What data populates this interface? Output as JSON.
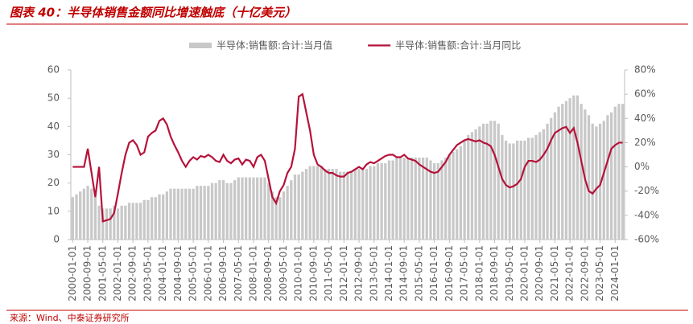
{
  "title": "图表 40：半导体销售金额同比增速触底（十亿美元）",
  "source": "来源：Wind、中泰证券研究所",
  "chart_data": {
    "type": "bar-line",
    "categories": [
      "2000-01-01",
      null,
      null,
      null,
      "2000-09-01",
      null,
      null,
      null,
      "2001-05-01",
      null,
      null,
      null,
      "2002-01-01",
      null,
      null,
      null,
      "2002-09-01",
      null,
      null,
      null,
      "2003-05-01",
      null,
      null,
      null,
      "2004-01-01",
      null,
      null,
      null,
      "2004-09-01",
      null,
      null,
      null,
      "2005-05-01",
      null,
      null,
      null,
      "2006-01-01",
      null,
      null,
      null,
      "2006-09-01",
      null,
      null,
      null,
      "2007-05-01",
      null,
      null,
      null,
      "2008-01-01",
      null,
      null,
      null,
      "2008-09-01",
      null,
      null,
      null,
      "2009-05-01",
      null,
      null,
      null,
      "2010-01-01",
      null,
      null,
      null,
      "2010-09-01",
      null,
      null,
      null,
      "2011-05-01",
      null,
      null,
      null,
      "2012-01-01",
      null,
      null,
      null,
      "2012-09-01",
      null,
      null,
      null,
      "2013-05-01",
      null,
      null,
      null,
      "2014-01-01",
      null,
      null,
      null,
      "2014-09-01",
      null,
      null,
      null,
      "2015-05-01",
      null,
      null,
      null,
      "2016-01-01",
      null,
      null,
      null,
      "2016-09-01",
      null,
      null,
      null,
      "2017-05-01",
      null,
      null,
      null,
      "2018-01-01",
      null,
      null,
      null,
      "2018-09-01",
      null,
      null,
      null,
      "2019-05-01",
      null,
      null,
      null,
      "2020-01-01",
      null,
      null,
      null,
      "2020-09-01",
      null,
      null,
      null,
      "2021-05-01",
      null,
      null,
      null,
      "2022-01-01",
      null,
      null,
      null,
      "2022-09-01",
      null,
      null,
      null,
      "2023-05-01",
      null,
      null,
      null,
      "2024-01-01",
      null,
      null
    ],
    "series": [
      {
        "name": "半导体:销售额:合计:当月值",
        "type": "bar",
        "color": "#c8c8c8",
        "values": [
          15,
          16,
          17,
          18,
          19,
          18,
          15,
          12,
          11,
          11,
          11,
          12,
          11,
          12,
          12,
          13,
          13,
          13,
          13,
          14,
          14,
          15,
          15,
          16,
          16,
          17,
          18,
          18,
          18,
          18,
          18,
          18,
          18,
          19,
          19,
          19,
          19,
          20,
          20,
          21,
          21,
          20,
          20,
          21,
          22,
          22,
          22,
          22,
          22,
          22,
          22,
          22,
          20,
          17,
          15,
          15,
          17,
          19,
          21,
          23,
          23,
          24,
          25,
          26,
          26,
          26,
          26,
          25,
          25,
          25,
          25,
          24,
          24,
          24,
          24,
          25,
          25,
          25,
          25,
          26,
          26,
          27,
          27,
          27,
          28,
          28,
          29,
          29,
          29,
          29,
          29,
          29,
          29,
          29,
          29,
          28,
          27,
          27,
          28,
          29,
          30,
          31,
          32,
          33,
          35,
          37,
          38,
          39,
          40,
          41,
          41,
          42,
          42,
          41,
          37,
          35,
          34,
          34,
          35,
          35,
          35,
          36,
          36,
          37,
          38,
          39,
          41,
          43,
          45,
          47,
          48,
          49,
          50,
          51,
          51,
          48,
          46,
          44,
          41,
          40,
          41,
          42,
          44,
          45,
          47,
          48,
          48
        ]
      },
      {
        "name": "半导体:销售额:合计:当月同比",
        "type": "line",
        "axis": "y2",
        "color": "#b5123a",
        "values": [
          0,
          0,
          0,
          0,
          15,
          -5,
          -25,
          0,
          -45,
          -44,
          -43,
          -38,
          -22,
          -5,
          10,
          20,
          22,
          18,
          10,
          12,
          25,
          28,
          30,
          38,
          40,
          35,
          25,
          18,
          12,
          5,
          0,
          5,
          8,
          6,
          9,
          8,
          10,
          8,
          5,
          4,
          10,
          5,
          3,
          6,
          7,
          2,
          6,
          5,
          0,
          8,
          10,
          5,
          -10,
          -25,
          -30,
          -20,
          -15,
          -5,
          0,
          15,
          58,
          60,
          45,
          30,
          10,
          2,
          0,
          -3,
          -5,
          -5,
          -7,
          -8,
          -8,
          -5,
          -4,
          -2,
          0,
          -2,
          2,
          4,
          3,
          5,
          7,
          9,
          10,
          10,
          8,
          8,
          10,
          7,
          6,
          5,
          2,
          0,
          -2,
          -4,
          -5,
          -4,
          0,
          4,
          10,
          14,
          18,
          20,
          22,
          23,
          22,
          21,
          22,
          20,
          19,
          17,
          10,
          0,
          -10,
          -15,
          -17,
          -16,
          -14,
          -10,
          0,
          5,
          5,
          4,
          6,
          10,
          15,
          22,
          28,
          30,
          32,
          33,
          28,
          32,
          20,
          5,
          -10,
          -20,
          -22,
          -18,
          -15,
          -5,
          5,
          15,
          18,
          20,
          20
        ]
      }
    ],
    "ylim": [
      0,
      60
    ],
    "yticks": [
      0,
      10,
      20,
      30,
      40,
      50,
      60
    ],
    "y2lim": [
      -60,
      80
    ],
    "y2ticks": [
      {
        "value": -60,
        "label": "-60%"
      },
      {
        "value": -40,
        "label": "-40%"
      },
      {
        "value": -20,
        "label": "-20%"
      },
      {
        "value": 0,
        "label": "0%"
      },
      {
        "value": 20,
        "label": "20%"
      },
      {
        "value": 40,
        "label": "40%"
      },
      {
        "value": 60,
        "label": "60%"
      },
      {
        "value": 80,
        "label": "80%"
      }
    ],
    "legend": "top"
  }
}
